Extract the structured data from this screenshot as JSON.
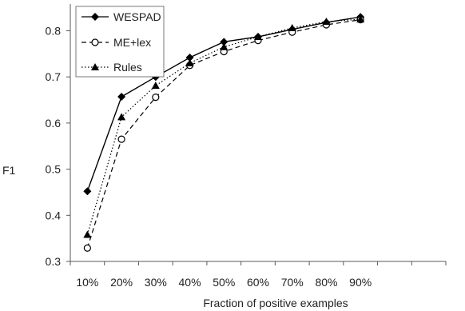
{
  "chart_data": {
    "type": "line",
    "xlabel": "Fraction of positive examples",
    "ylabel": "F1",
    "categories": [
      "10%",
      "20%",
      "30%",
      "40%",
      "50%",
      "60%",
      "70%",
      "80%",
      "90%"
    ],
    "ylim": [
      0.3,
      0.85
    ],
    "yticks": [
      0.3,
      0.4,
      0.5,
      0.6,
      0.7,
      0.8
    ],
    "legend_position": "top-left",
    "grid": false,
    "series": [
      {
        "name": "WESPAD",
        "values": [
          0.452,
          0.657,
          0.7,
          0.742,
          0.776,
          0.787,
          0.803,
          0.818,
          0.83
        ],
        "line_style": "solid",
        "marker": "diamond-filled"
      },
      {
        "name": "ME+lex",
        "values": [
          0.329,
          0.565,
          0.656,
          0.725,
          0.755,
          0.779,
          0.797,
          0.813,
          0.824
        ],
        "line_style": "dashed",
        "marker": "circle-open"
      },
      {
        "name": "Rules",
        "values": [
          0.358,
          0.613,
          0.681,
          0.73,
          0.765,
          0.787,
          0.806,
          0.82,
          0.825
        ],
        "line_style": "dotted",
        "marker": "triangle-filled"
      }
    ]
  },
  "colors": {
    "line": "#000000",
    "axis": "#595959",
    "text": "#222222",
    "legend_border": "#595959"
  }
}
